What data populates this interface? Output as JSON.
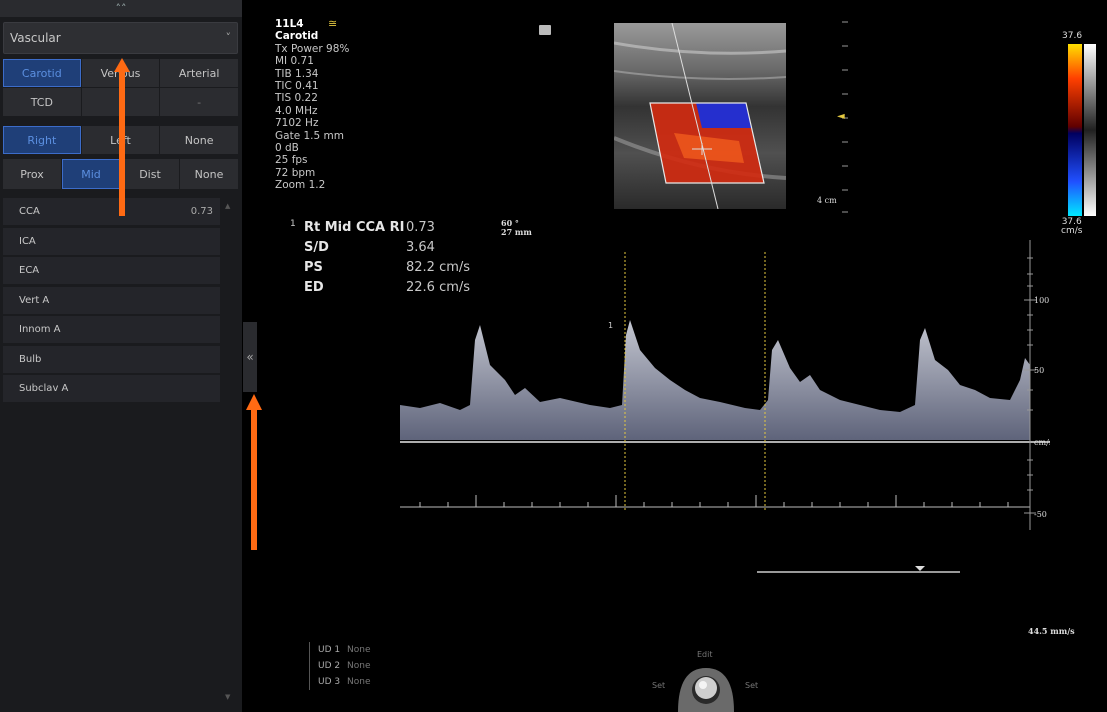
{
  "left_panel": {
    "collapse_glyph": "»",
    "app_select": {
      "value": "Vascular",
      "chevron": "˅"
    },
    "vessel_buttons": [
      {
        "label": "Carotid",
        "selected": true
      },
      {
        "label": "Venous",
        "selected": false
      },
      {
        "label": "Arterial",
        "selected": false
      },
      {
        "label": "TCD",
        "selected": false
      },
      {
        "label": "",
        "selected": false
      },
      {
        "label": "-",
        "selected": false
      }
    ],
    "side_buttons": [
      {
        "label": "Right",
        "selected": true
      },
      {
        "label": "Left",
        "selected": false
      },
      {
        "label": "None",
        "selected": false
      }
    ],
    "segment_buttons": [
      {
        "label": "Prox",
        "selected": false
      },
      {
        "label": "Mid",
        "selected": true
      },
      {
        "label": "Dist",
        "selected": false
      },
      {
        "label": "None",
        "selected": false
      }
    ],
    "measurements": [
      {
        "label": "CCA",
        "value": "0.73"
      },
      {
        "label": "ICA",
        "value": ""
      },
      {
        "label": "ECA",
        "value": ""
      },
      {
        "label": "Vert A",
        "value": ""
      },
      {
        "label": "Innom A",
        "value": ""
      },
      {
        "label": "Bulb",
        "value": ""
      },
      {
        "label": "Subclav A",
        "value": ""
      }
    ],
    "panel_toggle": "«"
  },
  "image": {
    "params": {
      "probe": "11L4",
      "preset": "Carotid",
      "lines": [
        "Tx Power 98%",
        "MI 0.71",
        "TIB 1.34",
        "TIC 0.41",
        "TIS 0.22",
        "4.0 MHz",
        "7102 Hz",
        "Gate 1.5 mm",
        "0 dB",
        "25 fps",
        "72 bpm",
        "Zoom 1.2"
      ]
    },
    "freeze_icon": "≅",
    "measurement_readout": {
      "index": "1",
      "rows": [
        {
          "label": "Rt Mid CCA RI",
          "value": "0.73"
        },
        {
          "label": "S/D",
          "value": "3.64"
        },
        {
          "label": "PS",
          "value": "82.2 cm/s"
        },
        {
          "label": "ED",
          "value": "22.6 cm/s"
        }
      ]
    },
    "angle": {
      "angle": "60 °",
      "depth": "27 mm"
    },
    "depth_label": "4 cm",
    "depth_marker": "◄",
    "colorbar": {
      "top": "37.6",
      "bottom": "37.6",
      "unit": "cm/s",
      "colors": {
        "top": "#ffe000",
        "mid_pos": "#c01010",
        "mid_neg": "#1030c0",
        "bottom": "#00e0ff"
      }
    },
    "spectral_axis": {
      "labels": [
        "100",
        "50",
        "cm/s",
        "-50"
      ],
      "cursor_index": "1"
    },
    "sweep_speed": "44.5 mm/s",
    "user_defined": [
      {
        "key": "UD 1",
        "value": "None"
      },
      {
        "key": "UD 2",
        "value": "None"
      },
      {
        "key": "UD 3",
        "value": "None"
      }
    ],
    "trackball": {
      "top": "Edit",
      "left": "Set",
      "right": "Set"
    },
    "annotation_color": "#ff6a13"
  }
}
